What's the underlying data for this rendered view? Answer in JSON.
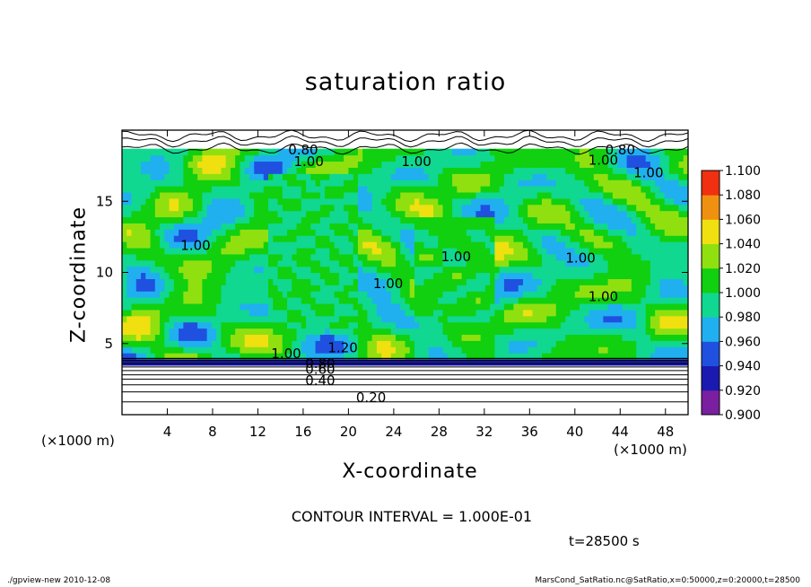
{
  "title": "saturation ratio",
  "xlabel": "X-coordinate",
  "ylabel": "Z-coordinate",
  "x_unit_left": "(×1000 m)",
  "x_unit_right": "(×1000 m)",
  "contour_interval": "CONTOUR INTERVAL = 1.000E-01",
  "time_label": "t=28500 s",
  "footer_left": "./gpview-new   2010-12-08",
  "footer_right": "MarsCond_SatRatio.nc@SatRatio,x=0:50000,z=0:20000,t=28500",
  "chart_data": {
    "type": "heatmap",
    "title": "saturation ratio",
    "xlabel": "X-coordinate",
    "ylabel": "Z-coordinate",
    "x_ticks": [
      4,
      8,
      12,
      16,
      20,
      24,
      28,
      32,
      36,
      40,
      44,
      48
    ],
    "y_ticks": [
      5,
      10,
      15
    ],
    "xlim": [
      0,
      50
    ],
    "ylim": [
      0,
      20
    ],
    "x_unit": "×1000 m",
    "z_unit": "×1000 m",
    "colorbar": {
      "levels": [
        0.9,
        0.92,
        0.94,
        0.96,
        0.98,
        1.0,
        1.02,
        1.04,
        1.06,
        1.08,
        1.1
      ],
      "labels": [
        "0.900",
        "0.920",
        "0.940",
        "0.960",
        "0.980",
        "1.000",
        "1.020",
        "1.040",
        "1.060",
        "1.080",
        "1.100"
      ],
      "colors": [
        "#7a1fa0",
        "#1a1ab0",
        "#2050e0",
        "#20b0f0",
        "#10d890",
        "#10d010",
        "#90e010",
        "#f0e010",
        "#f09010",
        "#f03010",
        "#f08080"
      ]
    },
    "contour_labels": [
      {
        "text": "0.20",
        "x": 22,
        "z": 1.2
      },
      {
        "text": "0.40",
        "x": 17.5,
        "z": 2.4
      },
      {
        "text": "0.60",
        "x": 17.5,
        "z": 3.2
      },
      {
        "text": "0.80",
        "x": 17.5,
        "z": 3.6
      },
      {
        "text": "1.00",
        "x": 14.5,
        "z": 4.3
      },
      {
        "text": "1.20",
        "x": 19.5,
        "z": 4.7
      },
      {
        "text": "1.00",
        "x": 6.5,
        "z": 11.9
      },
      {
        "text": "1.00",
        "x": 23.5,
        "z": 9.2
      },
      {
        "text": "1.00",
        "x": 29.5,
        "z": 11.1
      },
      {
        "text": "1.00",
        "x": 40.5,
        "z": 11.0
      },
      {
        "text": "1.00",
        "x": 42.5,
        "z": 8.3
      },
      {
        "text": "1.00",
        "x": 16.5,
        "z": 17.8
      },
      {
        "text": "1.00",
        "x": 26,
        "z": 17.8
      },
      {
        "text": "1.00",
        "x": 42.5,
        "z": 17.9
      },
      {
        "text": "1.00",
        "x": 46.5,
        "z": 17.0
      },
      {
        "text": "0.80",
        "x": 16,
        "z": 18.6
      },
      {
        "text": "0.80",
        "x": 44,
        "z": 18.6
      }
    ]
  }
}
